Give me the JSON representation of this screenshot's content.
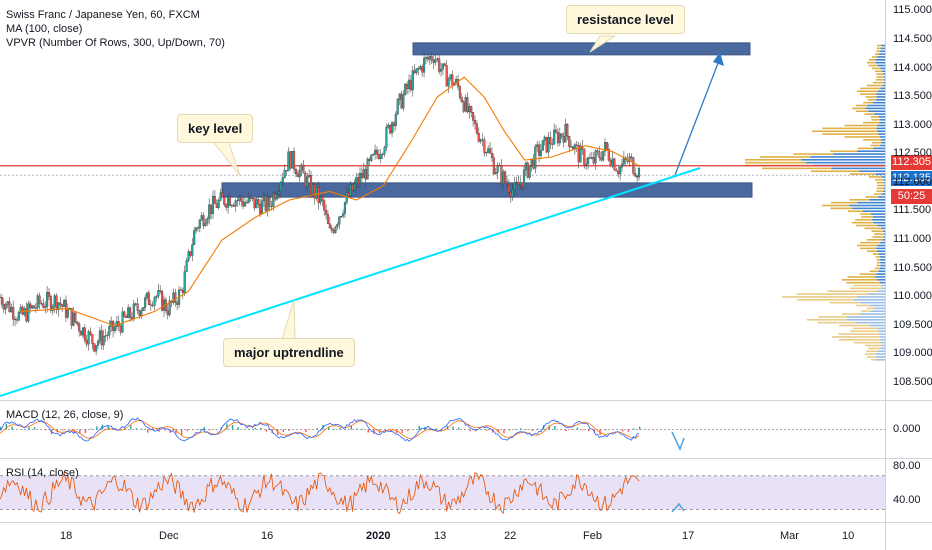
{
  "legend": {
    "symbol": "Swiss Franc / Japanese Yen, 60, FXCM",
    "ma": "MA (100, close)",
    "vpvr": "VPVR (Number Of Rows, 300, Up/Down, 70)",
    "macd": "MACD (12, 26, close, 9)",
    "rsi": "RSI (14, close)"
  },
  "annotations": {
    "resistance": "resistance level",
    "key": "key level",
    "trend": "major uptrendline"
  },
  "price_tags": {
    "last": "112.305",
    "ma": "112.135",
    "countdown": "50:25"
  },
  "colors": {
    "up": "#26a69a",
    "down": "#ef5350",
    "ma": "#f57c00",
    "trendline": "#00e5ff",
    "zone": "#2a4f8f",
    "key_line": "#e53935",
    "vp_up": "#1e6fc9",
    "vp_down": "#d9a224"
  },
  "chart_data": [
    {
      "type": "candlestick",
      "title": "Swiss Franc / Japanese Yen, 60, FXCM",
      "x_ticks": [
        "18",
        "Dec",
        "16",
        "2020",
        "13",
        "22",
        "Feb",
        "17",
        "Mar",
        "10"
      ],
      "y_ticks": [
        "115.000",
        "114.500",
        "114.000",
        "113.500",
        "113.000",
        "112.500",
        "112.000",
        "111.500",
        "111.000",
        "110.500",
        "110.000",
        "109.500",
        "109.000",
        "108.500"
      ],
      "ylim": [
        108.2,
        115.2
      ],
      "price_path": [
        {
          "x": 0,
          "y": 110.0
        },
        {
          "x": 0.03,
          "y": 109.65
        },
        {
          "x": 0.06,
          "y": 109.9
        },
        {
          "x": 0.085,
          "y": 109.95
        },
        {
          "x": 0.11,
          "y": 109.6
        },
        {
          "x": 0.14,
          "y": 109.2
        },
        {
          "x": 0.17,
          "y": 109.45
        },
        {
          "x": 0.2,
          "y": 109.75
        },
        {
          "x": 0.23,
          "y": 110.05
        },
        {
          "x": 0.25,
          "y": 109.8
        },
        {
          "x": 0.27,
          "y": 110.1
        },
        {
          "x": 0.29,
          "y": 111.2
        },
        {
          "x": 0.31,
          "y": 111.55
        },
        {
          "x": 0.34,
          "y": 111.75
        },
        {
          "x": 0.37,
          "y": 111.65
        },
        {
          "x": 0.4,
          "y": 111.6
        },
        {
          "x": 0.43,
          "y": 112.45
        },
        {
          "x": 0.455,
          "y": 112.05
        },
        {
          "x": 0.48,
          "y": 111.6
        },
        {
          "x": 0.49,
          "y": 111.1
        },
        {
          "x": 0.51,
          "y": 111.6
        },
        {
          "x": 0.53,
          "y": 112.0
        },
        {
          "x": 0.55,
          "y": 112.3
        },
        {
          "x": 0.57,
          "y": 112.7
        },
        {
          "x": 0.59,
          "y": 113.3
        },
        {
          "x": 0.61,
          "y": 113.75
        },
        {
          "x": 0.63,
          "y": 114.1
        },
        {
          "x": 0.645,
          "y": 114.25
        },
        {
          "x": 0.66,
          "y": 113.9
        },
        {
          "x": 0.68,
          "y": 113.7
        },
        {
          "x": 0.7,
          "y": 113.1
        },
        {
          "x": 0.72,
          "y": 112.7
        },
        {
          "x": 0.735,
          "y": 112.3
        },
        {
          "x": 0.75,
          "y": 112.05
        },
        {
          "x": 0.765,
          "y": 111.85
        },
        {
          "x": 0.78,
          "y": 112.15
        },
        {
          "x": 0.8,
          "y": 112.55
        },
        {
          "x": 0.82,
          "y": 112.75
        },
        {
          "x": 0.84,
          "y": 112.9
        },
        {
          "x": 0.86,
          "y": 112.5
        },
        {
          "x": 0.88,
          "y": 112.35
        },
        {
          "x": 0.9,
          "y": 112.6
        },
        {
          "x": 0.92,
          "y": 112.25
        },
        {
          "x": 0.935,
          "y": 112.4
        },
        {
          "x": 0.95,
          "y": 112.2
        }
      ],
      "ma_100": [
        {
          "x": 0.03,
          "y": 109.75
        },
        {
          "x": 0.1,
          "y": 109.8
        },
        {
          "x": 0.17,
          "y": 109.5
        },
        {
          "x": 0.23,
          "y": 109.75
        },
        {
          "x": 0.28,
          "y": 110.1
        },
        {
          "x": 0.33,
          "y": 111.0
        },
        {
          "x": 0.38,
          "y": 111.4
        },
        {
          "x": 0.43,
          "y": 111.7
        },
        {
          "x": 0.49,
          "y": 111.85
        },
        {
          "x": 0.53,
          "y": 111.7
        },
        {
          "x": 0.57,
          "y": 111.95
        },
        {
          "x": 0.61,
          "y": 112.7
        },
        {
          "x": 0.65,
          "y": 113.5
        },
        {
          "x": 0.69,
          "y": 113.85
        },
        {
          "x": 0.72,
          "y": 113.5
        },
        {
          "x": 0.75,
          "y": 112.9
        },
        {
          "x": 0.78,
          "y": 112.4
        },
        {
          "x": 0.82,
          "y": 112.45
        },
        {
          "x": 0.87,
          "y": 112.65
        },
        {
          "x": 0.91,
          "y": 112.55
        },
        {
          "x": 0.95,
          "y": 112.3
        }
      ],
      "zones": [
        {
          "name": "resistance zone",
          "y_low": 114.25,
          "y_high": 114.45
        },
        {
          "name": "key zone",
          "y_low": 111.75,
          "y_high": 112.0
        }
      ],
      "key_line": 112.3,
      "last_price": 112.305,
      "ma_value": 112.135
    },
    {
      "type": "line",
      "title": "MACD (12, 26, close, 9)",
      "y_ticks": [
        "0.000"
      ],
      "ylim": [
        -0.3,
        0.3
      ]
    },
    {
      "type": "line",
      "title": "RSI (14, close)",
      "y_ticks": [
        "80.00",
        "40.00"
      ],
      "bands": [
        70,
        30
      ],
      "ylim": [
        15,
        90
      ]
    }
  ]
}
